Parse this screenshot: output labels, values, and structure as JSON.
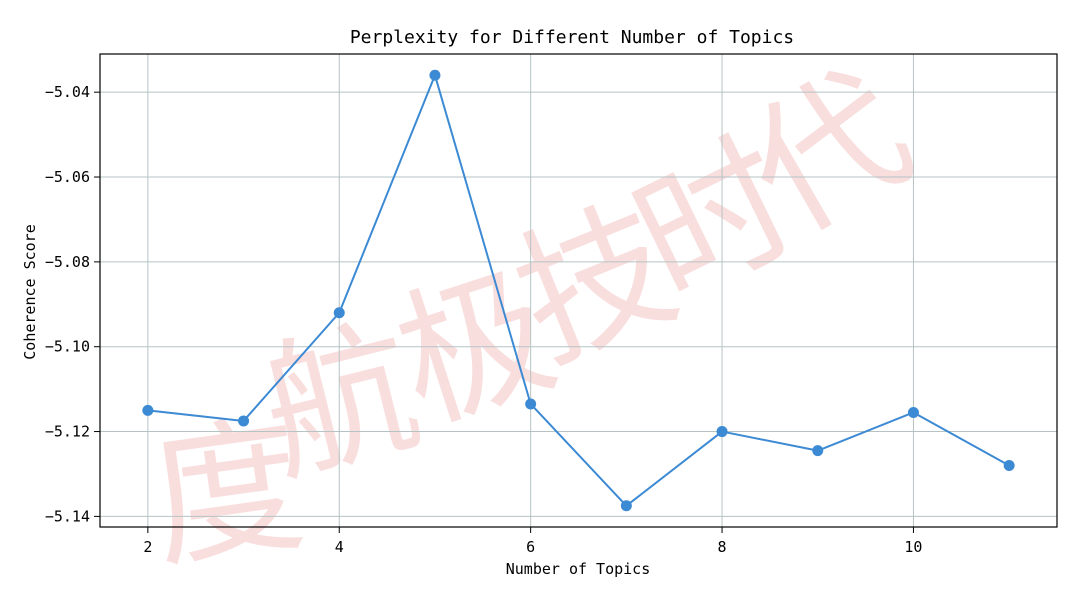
{
  "chart_data": {
    "type": "line",
    "title": "Perplexity for Different Number of Topics",
    "xlabel": "Number of Topics",
    "ylabel": "Coherence Score",
    "x": [
      2,
      3,
      4,
      5,
      6,
      7,
      8,
      9,
      10,
      11
    ],
    "series": [
      {
        "values": [
          -5.115,
          -5.1175,
          -5.092,
          -5.036,
          -5.1135,
          -5.1375,
          -5.12,
          -5.1245,
          -5.1155,
          -5.128
        ]
      }
    ],
    "xticks": [
      "2",
      "4",
      "6",
      "8",
      "10"
    ],
    "yticks": [
      "−5.04",
      "−5.06",
      "−5.08",
      "−5.10",
      "−5.12",
      "−5.14"
    ],
    "ytick_values": [
      -5.04,
      -5.06,
      -5.08,
      -5.1,
      -5.12,
      -5.14
    ],
    "xtick_values": [
      2,
      4,
      6,
      8,
      10
    ],
    "xlim": [
      1.5,
      11.5
    ],
    "ylim": [
      -5.1425,
      -5.031
    ],
    "grid": true,
    "legend": "none",
    "line_color": "#3c8ad4",
    "marker_color": "#3c8ad4",
    "grid_color": "#b5c3c5"
  },
  "watermark": {
    "glyphs": [
      "度",
      "航",
      "极",
      "技",
      "时",
      "代"
    ]
  }
}
